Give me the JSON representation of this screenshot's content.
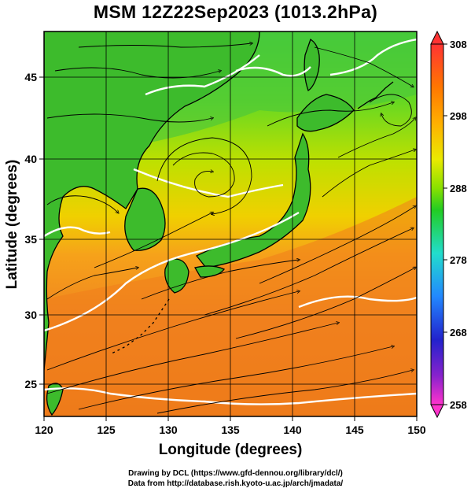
{
  "title": "MSM 12Z22Sep2023 (1013.2hPa)",
  "map": {
    "x_axis_label": "Longitude (degrees)",
    "y_axis_label": "Latitude  (degrees)",
    "x_range": [
      120,
      150
    ],
    "y_range": [
      22.5,
      47.6
    ],
    "x_ticks": [
      "120",
      "125",
      "130",
      "135",
      "140",
      "145",
      "150"
    ],
    "y_ticks": [
      "25",
      "30",
      "35",
      "40",
      "45"
    ],
    "grid": true,
    "field": "temperature shading with streamlines and white contours",
    "features": [
      "Japan islands",
      "Korean peninsula",
      "East China Sea",
      "Pacific Ocean",
      "cyclonic circulation near 38N 133E"
    ]
  },
  "colorbar": {
    "range": [
      258,
      308
    ],
    "ticks": [
      "308",
      "298",
      "288",
      "278",
      "268",
      "258"
    ],
    "colors": [
      "#ff33cc",
      "#2222cc",
      "#2288ff",
      "#22ddcc",
      "#22cc22",
      "#88e000",
      "#eaea00",
      "#ffb000",
      "#ff7700",
      "#ff3333"
    ]
  },
  "credits": {
    "line1": "Drawing by DCL (https://www.gfd-dennou.org/library/dcl/)",
    "line2": "Data from http://database.rish.kyoto-u.ac.jp/arch/jmadata/"
  },
  "colors": {
    "sea_warm": "#f08420",
    "land_green": "#40c030",
    "contour": "#ffffff",
    "coast": "#000000"
  }
}
